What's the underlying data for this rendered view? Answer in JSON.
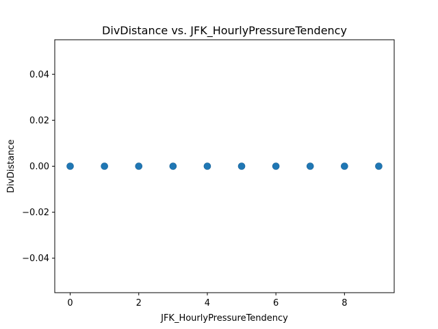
{
  "chart_data": {
    "type": "scatter",
    "title": "DivDistance vs. JFK_HourlyPressureTendency",
    "xlabel": "JFK_HourlyPressureTendency",
    "ylabel": "DivDistance",
    "xlim": [
      -0.45,
      9.45
    ],
    "ylim": [
      -0.055,
      0.055
    ],
    "xticks": [
      0,
      2,
      4,
      6,
      8
    ],
    "xtick_labels": [
      "0",
      "2",
      "4",
      "6",
      "8"
    ],
    "yticks": [
      -0.04,
      -0.02,
      0.0,
      0.02,
      0.04
    ],
    "ytick_labels": [
      "−0.04",
      "−0.02",
      "0.00",
      "0.02",
      "0.04"
    ],
    "grid": false,
    "marker_color": "#1f77b4",
    "series": [
      {
        "x": [
          0,
          1,
          2,
          3,
          4,
          5,
          6,
          7,
          8,
          9
        ],
        "y": [
          0,
          0,
          0,
          0,
          0,
          0,
          0,
          0,
          0,
          0
        ]
      }
    ]
  }
}
